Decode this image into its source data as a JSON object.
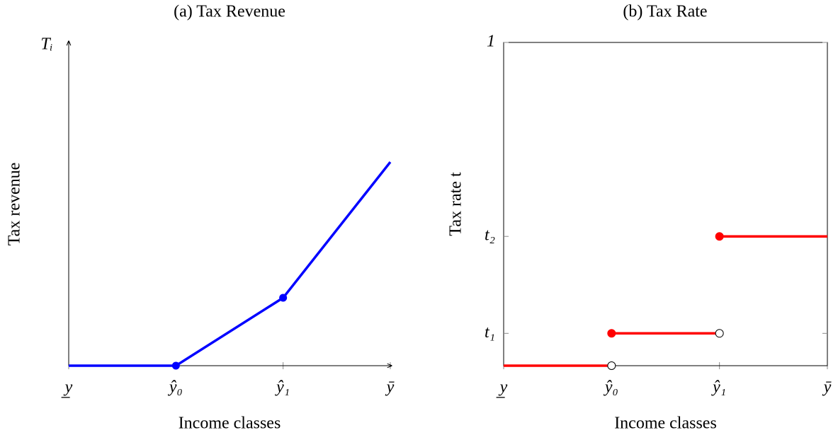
{
  "chart_data": [
    {
      "type": "line",
      "title": "(a) Tax Revenue",
      "xlabel": "Income classes",
      "ylabel": "Tax revenue",
      "y_annotation": "Tᵢ",
      "x": [
        0,
        1,
        2,
        3
      ],
      "values": [
        0,
        0,
        0.21,
        0.63
      ],
      "color": "#0000ff",
      "marker_indices": [
        1,
        2
      ],
      "xlim": [
        0,
        3
      ],
      "ylim": [
        0,
        1
      ],
      "xticks": [
        {
          "value": 0,
          "label": "y̲"
        },
        {
          "value": 1,
          "label": "ŷ₀"
        },
        {
          "value": 2,
          "label": "ŷ₁"
        },
        {
          "value": 3,
          "label": "ȳ"
        }
      ]
    },
    {
      "type": "step",
      "title": "(b) Tax Rate",
      "xlabel": "Income classes",
      "ylabel": "Tax rate t",
      "color": "#ff0000",
      "segments": [
        {
          "x": [
            0,
            1
          ],
          "value": 0,
          "start_dot": "none",
          "end_dot": "open"
        },
        {
          "x": [
            1,
            2
          ],
          "value": 0.1,
          "start_dot": "closed",
          "end_dot": "open"
        },
        {
          "x": [
            2,
            3
          ],
          "value": 0.4,
          "start_dot": "closed",
          "end_dot": "none"
        }
      ],
      "xlim": [
        0,
        3
      ],
      "ylim": [
        0,
        1
      ],
      "xticks": [
        {
          "value": 0,
          "label": "y̲"
        },
        {
          "value": 1,
          "label": "ŷ₀"
        },
        {
          "value": 2,
          "label": "ŷ₁"
        },
        {
          "value": 3,
          "label": "ȳ"
        }
      ],
      "yticks": [
        {
          "value": 0.1,
          "label": "t₁"
        },
        {
          "value": 0.4,
          "label": "t₂"
        },
        1
      ]
    }
  ]
}
